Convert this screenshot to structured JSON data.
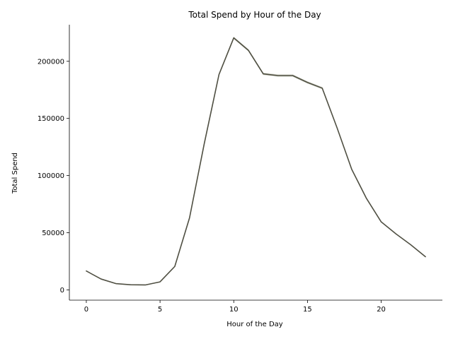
{
  "chart_data": {
    "type": "line",
    "title": "Total Spend by Hour of the Day",
    "xlabel": "Hour of the Day",
    "ylabel": "Total Spend",
    "xlim": [
      -1.15,
      24.15
    ],
    "ylim": [
      -9000,
      232000
    ],
    "x_ticks": [
      0,
      5,
      10,
      15,
      20
    ],
    "x_tick_labels": [
      "0",
      "5",
      "10",
      "15",
      "20"
    ],
    "y_ticks": [
      0,
      50000,
      100000,
      150000,
      200000
    ],
    "y_tick_labels": [
      "0",
      "50000",
      "100000",
      "150000",
      "200000"
    ],
    "grid": false,
    "line_color": "#4f4f42",
    "band_color": "#b8baa8",
    "series": [
      {
        "x": [
          0,
          1,
          2,
          3,
          4,
          5,
          6,
          7,
          8,
          9,
          10,
          11,
          12,
          13,
          14,
          15,
          16,
          17,
          18,
          19,
          20,
          21,
          22,
          23
        ],
        "values": [
          16500,
          9500,
          5500,
          4500,
          4300,
          7000,
          20500,
          63000,
          128000,
          188500,
          220500,
          209500,
          189000,
          187500,
          187500,
          181500,
          176500,
          142000,
          105500,
          80000,
          59500,
          49000,
          39500,
          29000
        ],
        "band_low": [
          16500,
          9500,
          5500,
          4500,
          4300,
          7000,
          20500,
          63000,
          128000,
          188000,
          219500,
          208500,
          188000,
          186500,
          186500,
          180500,
          175500,
          142000,
          105500,
          80000,
          59500,
          49000,
          39500,
          29000
        ],
        "band_high": [
          16500,
          9500,
          5500,
          4500,
          4300,
          7000,
          20500,
          63000,
          128000,
          189000,
          221500,
          210500,
          190000,
          188500,
          188500,
          182500,
          177500,
          142000,
          105500,
          80000,
          59500,
          49000,
          39500,
          29000
        ]
      }
    ]
  }
}
